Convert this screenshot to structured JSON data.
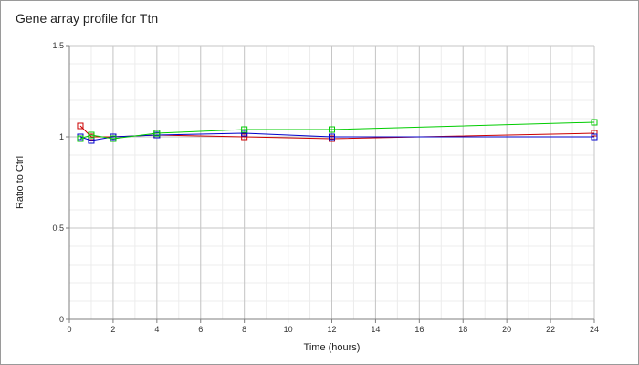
{
  "colors": {
    "grid_major": "#c6c6c6",
    "grid_minor": "#ececec",
    "axis": "#7f7f7f",
    "series": [
      "#cc0000",
      "#0000cc",
      "#00cc00"
    ]
  },
  "chart_data": {
    "type": "line",
    "title": "Gene array profile for Ttn",
    "xlabel": "Time (hours)",
    "ylabel": "Ratio to Ctrl",
    "xlim": [
      0,
      24
    ],
    "ylim": [
      0,
      1.5
    ],
    "xticks": [
      0,
      2,
      4,
      6,
      8,
      10,
      12,
      14,
      16,
      18,
      20,
      22,
      24
    ],
    "yticks": [
      0,
      0.5,
      1,
      1.5
    ],
    "grid": true,
    "marker": "open-square",
    "series": [
      {
        "x": [
          0.5,
          1,
          2,
          4,
          8,
          12,
          24
        ],
        "y": [
          1.06,
          1.0,
          1.0,
          1.01,
          1.0,
          0.99,
          1.02
        ]
      },
      {
        "x": [
          0.5,
          1,
          2,
          4,
          8,
          12,
          24
        ],
        "y": [
          1.0,
          0.98,
          1.0,
          1.01,
          1.02,
          1.0,
          1.0
        ]
      },
      {
        "x": [
          0.5,
          1,
          2,
          4,
          8,
          12,
          24
        ],
        "y": [
          0.99,
          1.01,
          0.99,
          1.02,
          1.04,
          1.04,
          1.08
        ]
      }
    ]
  }
}
